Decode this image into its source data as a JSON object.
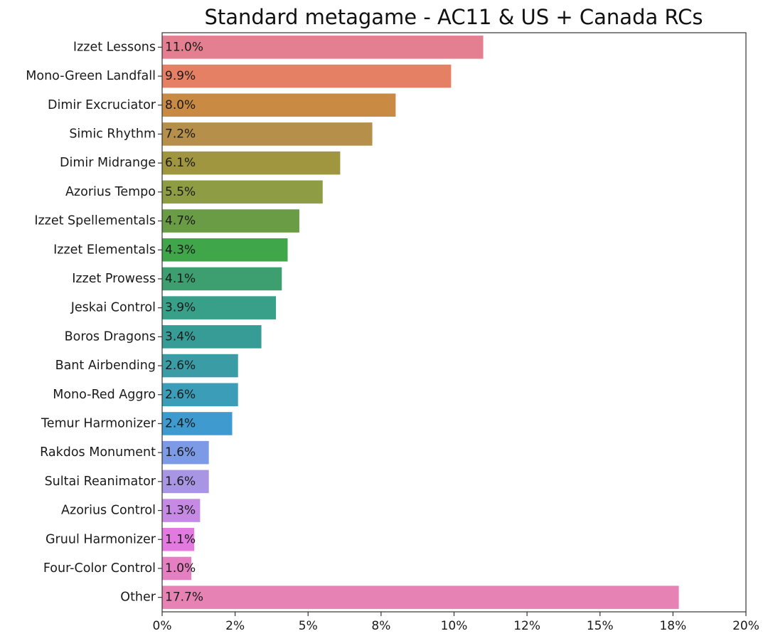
{
  "chart_data": {
    "type": "bar",
    "orientation": "horizontal",
    "title": "Standard metagame - AC11 & US + Canada RCs",
    "xlabel": "",
    "ylabel": "",
    "categories": [
      "Izzet Lessons",
      "Mono-Green Landfall",
      "Dimir Excruciator",
      "Simic Rhythm",
      "Dimir Midrange",
      "Azorius Tempo",
      "Izzet Spellementals",
      "Izzet Elementals",
      "Izzet Prowess",
      "Jeskai Control",
      "Boros Dragons",
      "Bant Airbending",
      "Mono-Red Aggro",
      "Temur Harmonizer",
      "Rakdos Monument",
      "Sultai Reanimator",
      "Azorius Control",
      "Gruul Harmonizer",
      "Four-Color Control",
      "Other"
    ],
    "values": [
      11.0,
      9.9,
      8.0,
      7.2,
      6.1,
      5.5,
      4.7,
      4.3,
      4.1,
      3.9,
      3.4,
      2.6,
      2.6,
      2.4,
      1.6,
      1.6,
      1.3,
      1.1,
      1.0,
      17.7
    ],
    "value_labels": [
      "11.0%",
      "9.9%",
      "8.0%",
      "7.2%",
      "6.1%",
      "5.5%",
      "4.7%",
      "4.3%",
      "4.1%",
      "3.9%",
      "3.4%",
      "2.6%",
      "2.6%",
      "2.4%",
      "1.6%",
      "1.6%",
      "1.3%",
      "1.1%",
      "1.0%",
      "17.7%"
    ],
    "colors": [
      "#e47f91",
      "#e68065",
      "#c98a44",
      "#b6904a",
      "#9f963f",
      "#8e9c43",
      "#6a9c46",
      "#3fa64a",
      "#3d9f6f",
      "#38a089",
      "#389c96",
      "#3a9ca5",
      "#3c9db8",
      "#3f9bcf",
      "#7c9ae6",
      "#a896e4",
      "#c78ae4",
      "#e27adf",
      "#e67fc1",
      "#e782b4"
    ],
    "xlim": [
      0,
      20
    ],
    "xticks": [
      0,
      2.5,
      5,
      7.5,
      10,
      12.5,
      15,
      17.5,
      20
    ],
    "xtick_labels": [
      "0%",
      "2%",
      "5%",
      "8%",
      "10%",
      "12%",
      "15%",
      "18%",
      "20%"
    ],
    "grid": false,
    "legend": "none"
  }
}
